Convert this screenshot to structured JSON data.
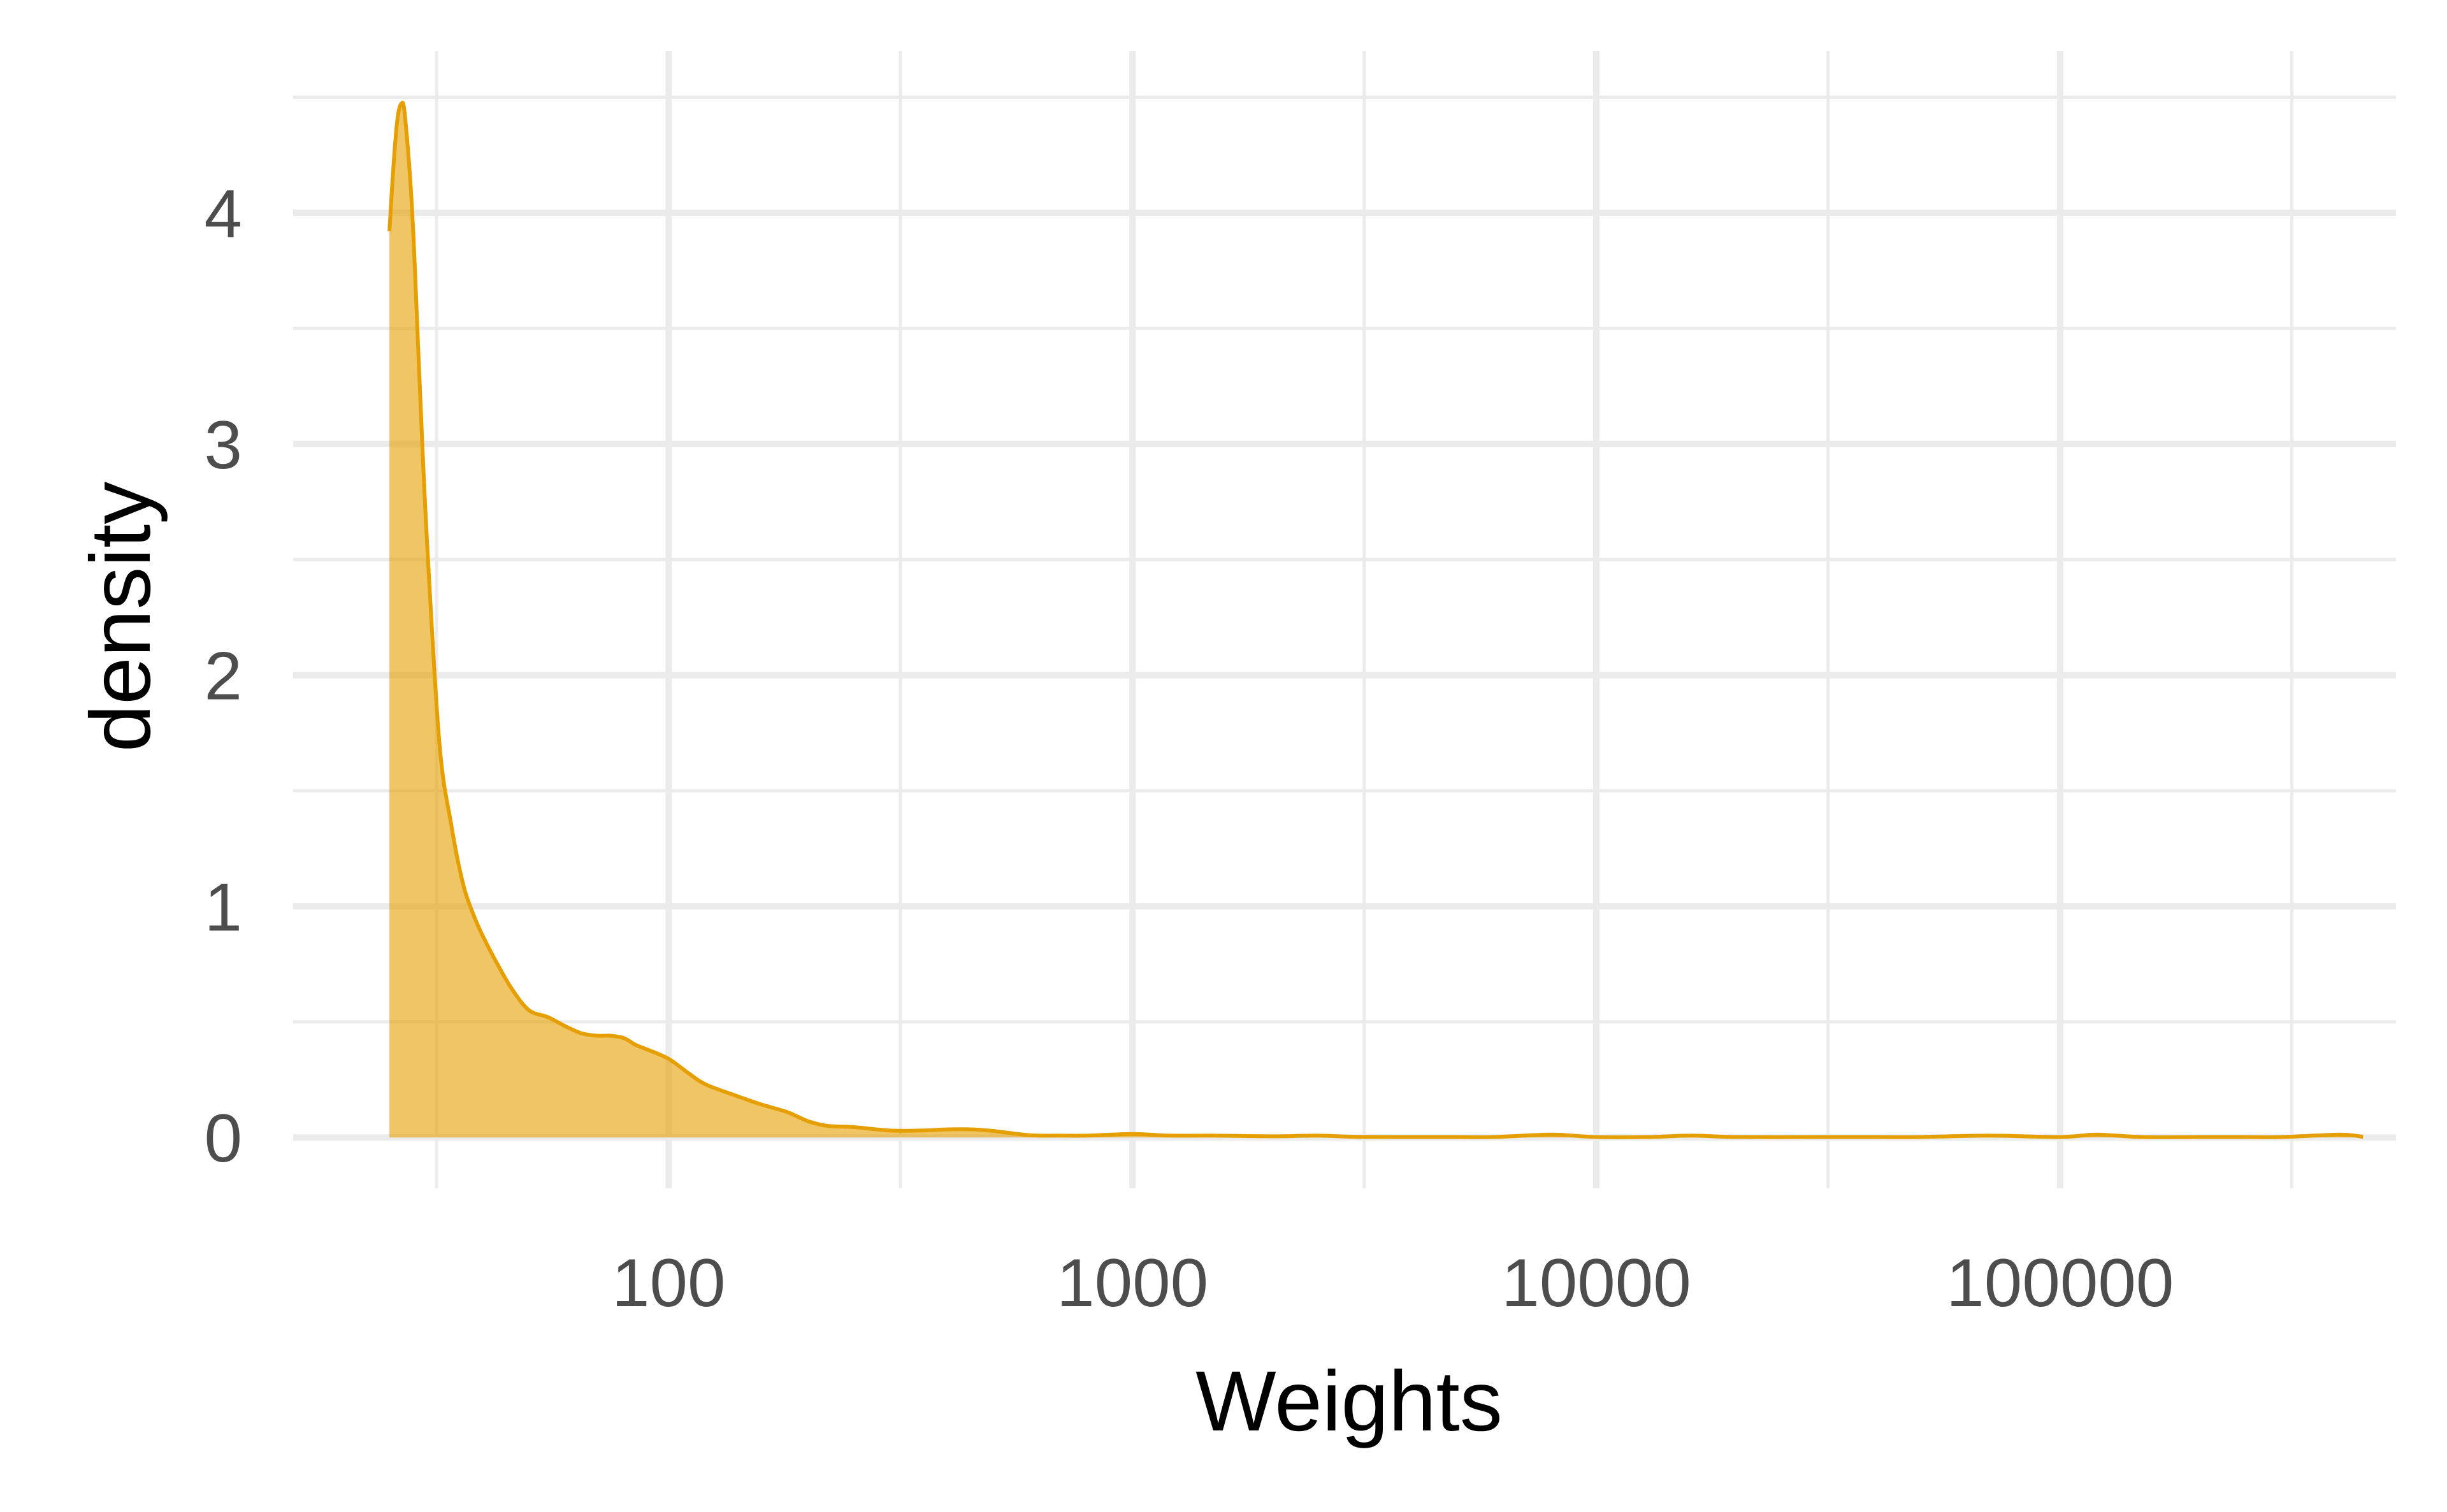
{
  "chart_data": {
    "type": "area",
    "xlabel": "Weights",
    "ylabel": "density",
    "x_scale": "log10",
    "xlim": [
      15.5,
      530000
    ],
    "ylim": [
      -0.22,
      4.7
    ],
    "x_ticks": [
      {
        "value": 100,
        "label": "100"
      },
      {
        "value": 1000,
        "label": "1000"
      },
      {
        "value": 10000,
        "label": "10000"
      },
      {
        "value": 100000,
        "label": "100000"
      }
    ],
    "x_minor_ticks": [
      31.6,
      316,
      3160,
      31600,
      316000
    ],
    "y_ticks": [
      {
        "value": 0,
        "label": "0"
      },
      {
        "value": 1,
        "label": "1"
      },
      {
        "value": 2,
        "label": "2"
      },
      {
        "value": 3,
        "label": "3"
      },
      {
        "value": 4,
        "label": "4"
      }
    ],
    "y_minor_ticks": [
      0.5,
      1.5,
      2.5,
      3.5,
      4.5
    ],
    "grid": true,
    "fill_color": "#E69F00",
    "fill_opacity": 0.6,
    "line_color": "#E69F00",
    "x": [
      25,
      25.5,
      26,
      26.5,
      27,
      28,
      29,
      30,
      32,
      34,
      36,
      38,
      40,
      43,
      46,
      50,
      55,
      60,
      65,
      70,
      75,
      80,
      85,
      90,
      100,
      110,
      120,
      140,
      160,
      180,
      200,
      220,
      250,
      300,
      350,
      400,
      450,
      500,
      600,
      700,
      800,
      1000,
      1200,
      1500,
      2000,
      2500,
      3000,
      4000,
      5000,
      6000,
      8000,
      10000,
      13000,
      16000,
      20000,
      30000,
      40000,
      50000,
      70000,
      100000,
      120000,
      150000,
      200000,
      250000,
      300000,
      400000,
      450000
    ],
    "y": [
      3.92,
      4.2,
      4.4,
      4.47,
      4.42,
      4.0,
      3.3,
      2.65,
      1.72,
      1.35,
      1.1,
      0.96,
      0.86,
      0.74,
      0.64,
      0.55,
      0.52,
      0.48,
      0.45,
      0.44,
      0.44,
      0.43,
      0.4,
      0.38,
      0.34,
      0.28,
      0.23,
      0.18,
      0.14,
      0.11,
      0.07,
      0.05,
      0.045,
      0.03,
      0.03,
      0.035,
      0.035,
      0.028,
      0.01,
      0.008,
      0.008,
      0.015,
      0.008,
      0.008,
      0.005,
      0.008,
      0.003,
      0.002,
      0.002,
      0.002,
      0.012,
      0.002,
      0.002,
      0.008,
      0.002,
      0.002,
      0.002,
      0.002,
      0.008,
      0.002,
      0.012,
      0.002,
      0.002,
      0.002,
      0.002,
      0.012,
      0.003
    ]
  }
}
